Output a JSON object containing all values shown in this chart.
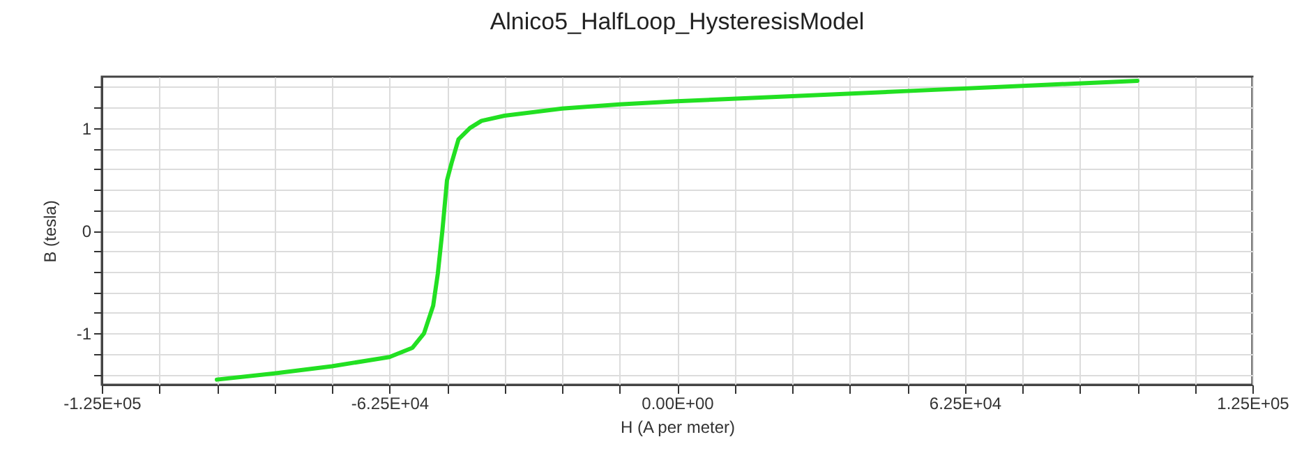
{
  "chart_data": {
    "type": "line",
    "title": "Alnico5_HalfLoop_HysteresisModel",
    "xlabel": "H (A  per  meter)",
    "ylabel": "B (tesla)",
    "x": [
      -100000,
      -87500,
      -75000,
      -62500,
      -57500,
      -55000,
      -53000,
      -52000,
      -51000,
      -50000,
      -49000,
      -47500,
      -45000,
      -42500,
      -37500,
      -25000,
      -12500,
      0,
      25000,
      50000,
      75000,
      100000
    ],
    "series": [
      {
        "color": "#22e022",
        "values": [
          -1.45,
          -1.39,
          -1.32,
          -1.23,
          -1.14,
          -1.0,
          -0.73,
          -0.42,
          0.0,
          0.49,
          0.66,
          0.89,
          1.0,
          1.07,
          1.12,
          1.19,
          1.23,
          1.26,
          1.31,
          1.36,
          1.41,
          1.46
        ]
      }
    ],
    "xlim": [
      -125000,
      125000
    ],
    "xticks": [
      {
        "value": -125000,
        "label": "-1.25E+05"
      },
      {
        "value": -112500,
        "label": null
      },
      {
        "value": -100000,
        "label": null
      },
      {
        "value": -87500,
        "label": null
      },
      {
        "value": -75000,
        "label": null
      },
      {
        "value": -62500,
        "label": "-6.25E+04"
      },
      {
        "value": -50000,
        "label": null
      },
      {
        "value": -37500,
        "label": null
      },
      {
        "value": -25000,
        "label": null
      },
      {
        "value": -12500,
        "label": null
      },
      {
        "value": 0,
        "label": "0.00E+00"
      },
      {
        "value": 12500,
        "label": null
      },
      {
        "value": 25000,
        "label": null
      },
      {
        "value": 37500,
        "label": null
      },
      {
        "value": 50000,
        "label": null
      },
      {
        "value": 62500,
        "label": "6.25E+04"
      },
      {
        "value": 75000,
        "label": null
      },
      {
        "value": 87500,
        "label": null
      },
      {
        "value": 100000,
        "label": null
      },
      {
        "value": 112500,
        "label": null
      },
      {
        "value": 125000,
        "label": "1.25E+05"
      }
    ],
    "ylim": [
      -1.5,
      1.5
    ],
    "yticks": [
      {
        "value": -1.4,
        "label": null
      },
      {
        "value": -1.2,
        "label": null
      },
      -1,
      {
        "value": -0.8,
        "label": null
      },
      {
        "value": -0.6,
        "label": null
      },
      {
        "value": -0.4,
        "label": null
      },
      {
        "value": -0.2,
        "label": null
      },
      0,
      {
        "value": 0.2,
        "label": null
      },
      {
        "value": 0.4,
        "label": null
      },
      {
        "value": 0.6,
        "label": null
      },
      {
        "value": 0.8,
        "label": null
      },
      1,
      {
        "value": 1.2,
        "label": null
      },
      {
        "value": 1.4,
        "label": null
      }
    ],
    "grid": true,
    "legend": false,
    "marker": "none",
    "line_style": "solid"
  }
}
